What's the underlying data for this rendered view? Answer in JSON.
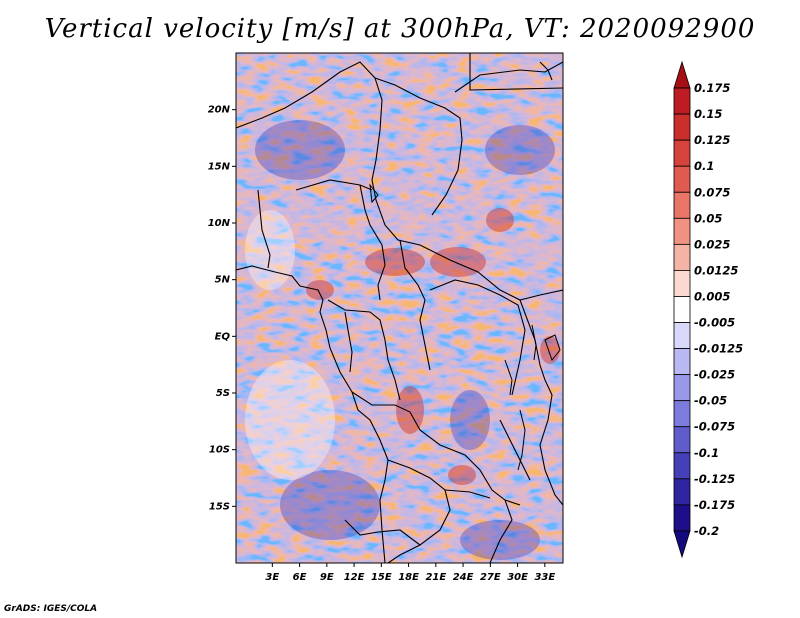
{
  "title": "Vertical velocity [m/s] at 300hPa, VT: 2020092900",
  "credit": "GrADS: IGES/COLA",
  "map": {
    "region": "Central Africa",
    "lat_range": [
      -20,
      25
    ],
    "lon_range": [
      -1,
      35
    ],
    "lat_ticks": [
      {
        "value": 20,
        "label": "20N"
      },
      {
        "value": 15,
        "label": "15N"
      },
      {
        "value": 10,
        "label": "10N"
      },
      {
        "value": 5,
        "label": "5N"
      },
      {
        "value": 0,
        "label": "EQ"
      },
      {
        "value": -5,
        "label": "5S"
      },
      {
        "value": -10,
        "label": "10S"
      },
      {
        "value": -15,
        "label": "15S"
      }
    ],
    "lon_ticks": [
      {
        "value": 3,
        "label": "3E"
      },
      {
        "value": 6,
        "label": "6E"
      },
      {
        "value": 9,
        "label": "9E"
      },
      {
        "value": 12,
        "label": "12E"
      },
      {
        "value": 15,
        "label": "15E"
      },
      {
        "value": 18,
        "label": "18E"
      },
      {
        "value": 21,
        "label": "21E"
      },
      {
        "value": 24,
        "label": "24E"
      },
      {
        "value": 27,
        "label": "27E"
      },
      {
        "value": 30,
        "label": "30E"
      },
      {
        "value": 33,
        "label": "33E"
      }
    ]
  },
  "colorbar": {
    "labels": [
      "0.175",
      "0.15",
      "0.125",
      "0.1",
      "0.075",
      "0.05",
      "0.025",
      "0.0125",
      "0.005",
      "-0.005",
      "-0.0125",
      "-0.025",
      "-0.05",
      "-0.075",
      "-0.1",
      "-0.125",
      "-0.175",
      "-0.2"
    ],
    "colors": [
      "#a50f15",
      "#bd1c22",
      "#cb2f2c",
      "#d6433c",
      "#df5a4f",
      "#e87565",
      "#ef9281",
      "#f5b3a6",
      "#fbd8d0",
      "#ffffff",
      "#d8d8fb",
      "#b8b8f2",
      "#9a98e8",
      "#7d7bdc",
      "#605ccc",
      "#4640b8",
      "#2f25a0",
      "#1c0f88",
      "#140a80"
    ]
  }
}
